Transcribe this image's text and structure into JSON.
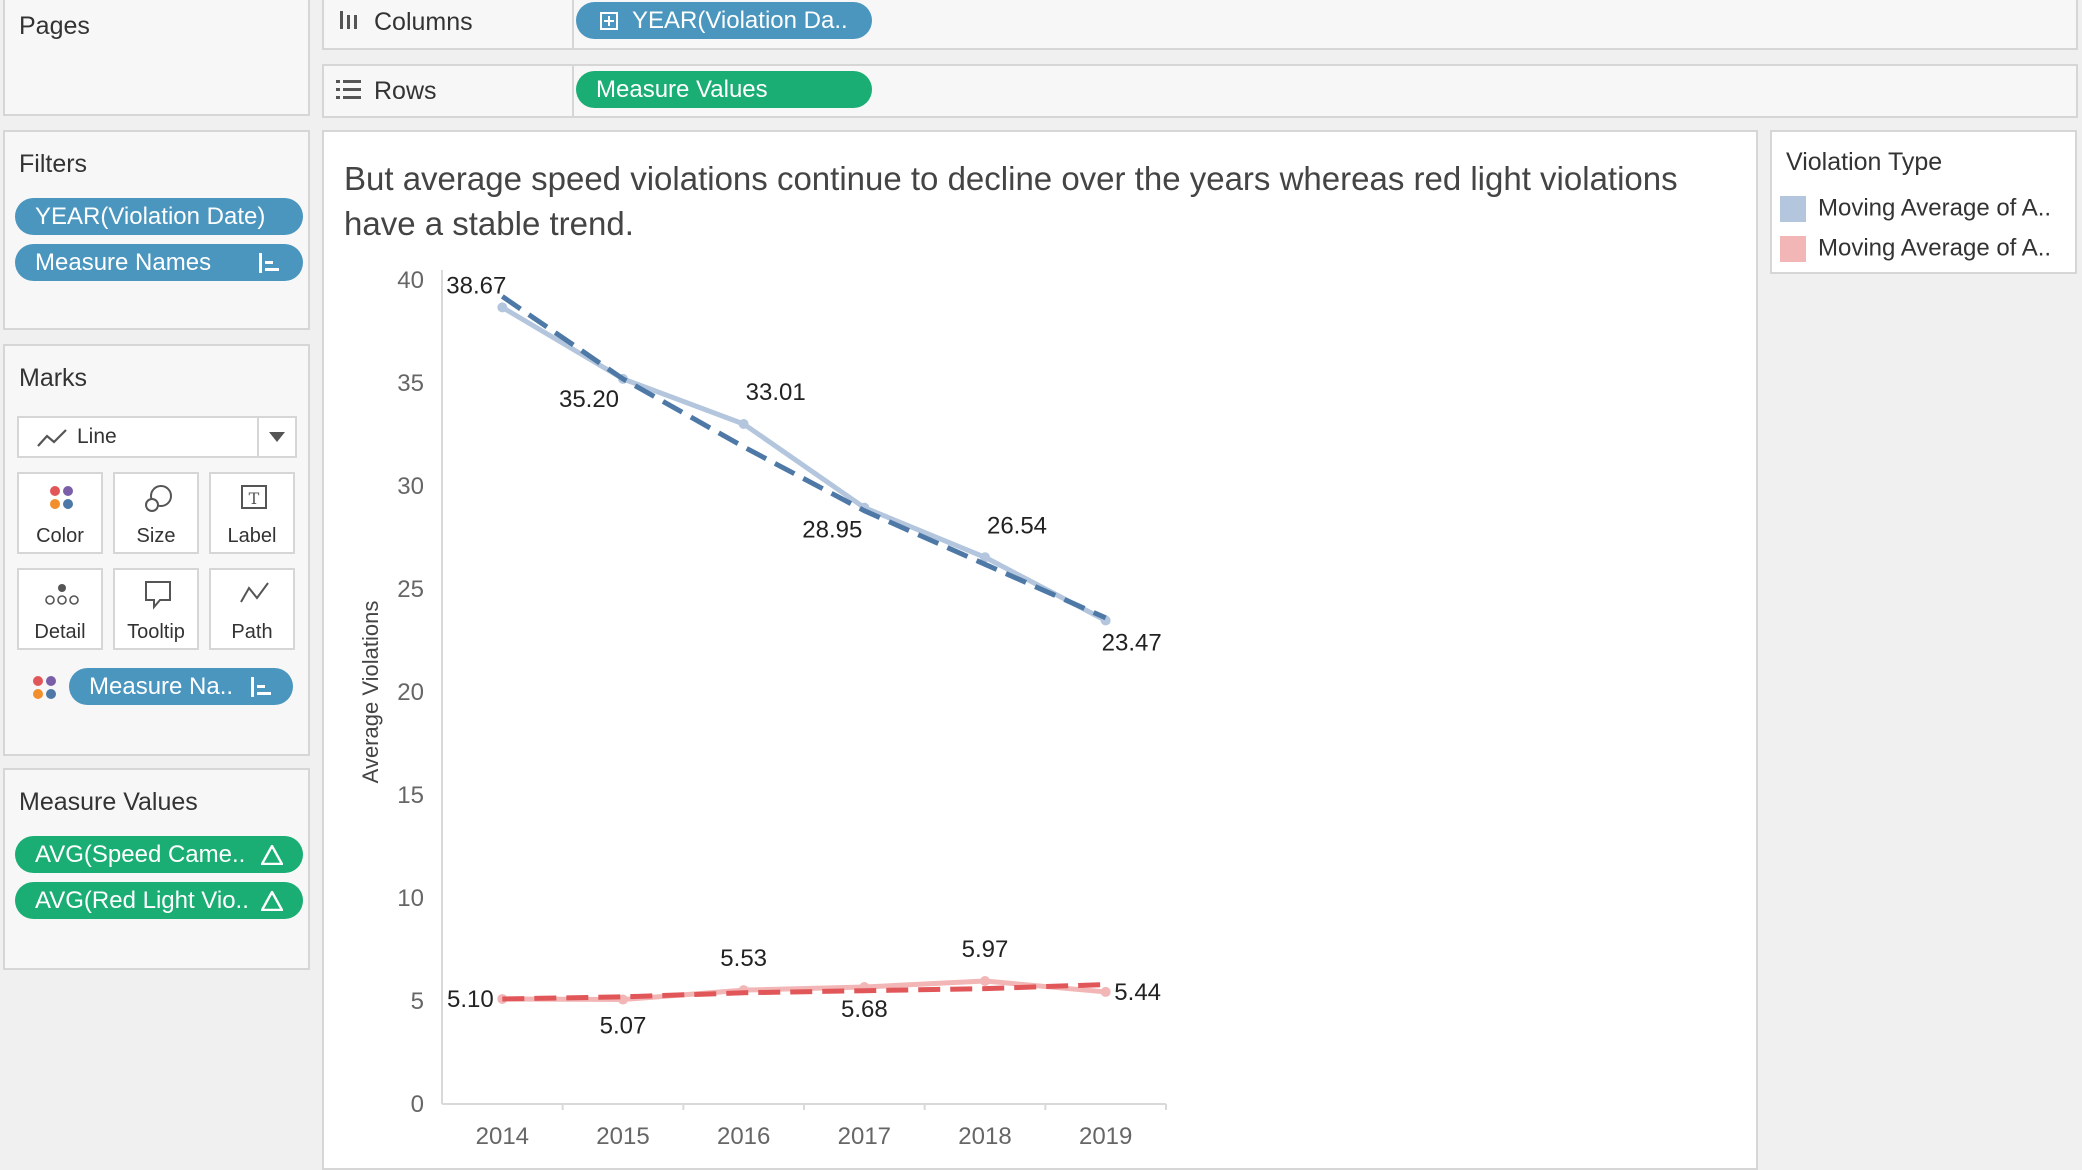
{
  "pages": {
    "title": "Pages"
  },
  "columns_shelf": {
    "label": "Columns",
    "pill": "YEAR(Violation Da.."
  },
  "rows_shelf": {
    "label": "Rows",
    "pill": "Measure Values"
  },
  "filters": {
    "title": "Filters",
    "pills": [
      "YEAR(Violation Date)",
      "Measure Names"
    ]
  },
  "marks": {
    "title": "Marks",
    "type": "Line",
    "cards": [
      "Color",
      "Size",
      "Label",
      "Detail",
      "Tooltip",
      "Path"
    ],
    "color_pill": "Measure Na.."
  },
  "measure_values": {
    "title": "Measure Values",
    "pills": [
      "AVG(Speed Came..",
      "AVG(Red Light Vio.."
    ]
  },
  "legend": {
    "title": "Violation Type",
    "items": [
      {
        "label": "Moving Average of A..",
        "color": "#b3c6dd"
      },
      {
        "label": "Moving Average of A..",
        "color": "#f2b6b6"
      }
    ]
  },
  "colors": {
    "speed_line": "#b3c6dd",
    "speed_trend": "#4e79a7",
    "red_line": "#f2b6b6",
    "red_trend": "#e15759",
    "accent_blue": "#4a96bf",
    "accent_green": "#1aae74"
  },
  "chart_data": {
    "type": "line",
    "title": "But average speed violations continue to decline over the years whereas red light violations have a stable trend.",
    "title_lines": [
      "But average speed violations continue to decline over the years whereas red light violations",
      "have a stable trend."
    ],
    "ylabel": "Average Violations",
    "xlabel": "",
    "ylim": [
      0,
      40
    ],
    "yticks": [
      0,
      5,
      10,
      15,
      20,
      25,
      30,
      35,
      40
    ],
    "categories": [
      "2014",
      "2015",
      "2016",
      "2017",
      "2018",
      "2019"
    ],
    "series": [
      {
        "values": [
          38.67,
          35.2,
          33.01,
          28.95,
          26.54,
          23.47
        ],
        "labels": [
          "38.67",
          "35.20",
          "33.01",
          "28.95",
          "26.54",
          "23.47"
        ],
        "trend": [
          39.2,
          35.2,
          31.9,
          28.8,
          26.2,
          23.6
        ],
        "color": "#b3c6dd",
        "trend_color": "#4e79a7"
      },
      {
        "values": [
          5.1,
          5.07,
          5.53,
          5.68,
          5.97,
          5.44
        ],
        "labels": [
          "5.10",
          "5.07",
          "5.53",
          "5.68",
          "5.97",
          "5.44"
        ],
        "trend": [
          5.1,
          5.2,
          5.4,
          5.5,
          5.6,
          5.8
        ],
        "color": "#f2b6b6",
        "trend_color": "#e15759"
      }
    ],
    "grid": false
  }
}
